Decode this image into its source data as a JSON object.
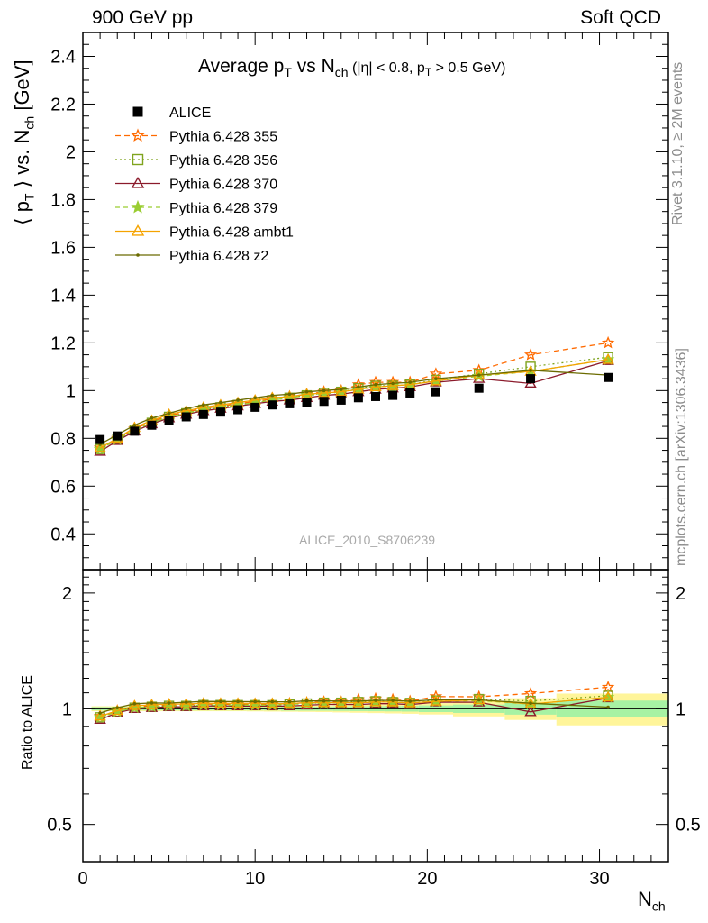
{
  "header": {
    "left": "900 GeV pp",
    "right": "Soft QCD"
  },
  "side_labels": {
    "rivet": "Rivet 3.1.10, ≥ 2M events",
    "mcplots": "mcplots.cern.ch [arXiv:1306.3436]"
  },
  "watermark": "ALICE_2010_S8706239",
  "chart_data": {
    "type": "scatter",
    "title": {
      "main": "Average p",
      "sub1": "T",
      "mid": " vs N",
      "sub2": "ch",
      "rest": " (|η| < 0.8, p",
      "sub3": "T",
      "end": " > 0.5 GeV)"
    },
    "xlabel": {
      "main": "N",
      "sub": "ch"
    },
    "ylabel": {
      "a": "⟨ p",
      "sub1": "T",
      "b": " ⟩ vs. N",
      "sub2": "ch",
      "c": " [GeV]"
    },
    "ratio_ylabel": "Ratio to ALICE",
    "xlim": [
      0,
      34
    ],
    "ylim": [
      0.25,
      2.5
    ],
    "ratio_ylim": [
      0.4,
      2.3
    ],
    "ratio_log": true,
    "x_ticks": [
      "0",
      "10",
      "20",
      "30"
    ],
    "y_ticks": [
      "0.4",
      "0.6",
      "0.8",
      "1",
      "1.2",
      "1.4",
      "1.6",
      "1.8",
      "2",
      "2.2",
      "2.4"
    ],
    "ratio_ticks": [
      "0.5",
      "1",
      "2"
    ],
    "legend_position": "top-left",
    "data": {
      "name": "ALICE",
      "color": "#000000",
      "x": [
        1,
        2,
        3,
        4,
        5,
        6,
        7,
        8,
        9,
        10,
        11,
        12,
        13,
        14,
        15,
        16,
        17,
        18,
        19,
        20.5,
        23,
        26,
        30.5
      ],
      "y": [
        0.795,
        0.81,
        0.83,
        0.855,
        0.875,
        0.89,
        0.9,
        0.91,
        0.92,
        0.93,
        0.94,
        0.945,
        0.95,
        0.955,
        0.96,
        0.97,
        0.975,
        0.98,
        0.99,
        0.995,
        1.01,
        1.05,
        1.055
      ],
      "ratio_band_edges": [
        0.5,
        1.5,
        2.5,
        3.5,
        4.5,
        5.5,
        6.5,
        7.5,
        8.5,
        9.5,
        10.5,
        11.5,
        12.5,
        13.5,
        14.5,
        15.5,
        16.5,
        17.5,
        18.5,
        19.5,
        21.5,
        24.5,
        27.5,
        34
      ],
      "ratio_band_stat": [
        0.01,
        0.01,
        0.01,
        0.01,
        0.01,
        0.01,
        0.01,
        0.01,
        0.01,
        0.01,
        0.01,
        0.012,
        0.012,
        0.012,
        0.013,
        0.014,
        0.015,
        0.016,
        0.017,
        0.02,
        0.025,
        0.035,
        0.05
      ],
      "ratio_band_tot": [
        0.015,
        0.015,
        0.015,
        0.015,
        0.015,
        0.015,
        0.015,
        0.015,
        0.015,
        0.016,
        0.017,
        0.018,
        0.019,
        0.02,
        0.022,
        0.024,
        0.026,
        0.028,
        0.03,
        0.034,
        0.045,
        0.065,
        0.095
      ]
    },
    "series": [
      {
        "name": "Pythia 6.428 355",
        "color": "#ff6a00",
        "dash": "6,4",
        "marker": "star-open",
        "x": [
          1,
          2,
          3,
          4,
          5,
          6,
          7,
          8,
          9,
          10,
          11,
          12,
          13,
          14,
          15,
          16,
          17,
          18,
          19,
          20.5,
          23,
          26,
          30.5
        ],
        "y": [
          0.76,
          0.8,
          0.84,
          0.87,
          0.895,
          0.91,
          0.925,
          0.935,
          0.945,
          0.955,
          0.965,
          0.975,
          0.985,
          0.995,
          1.0,
          1.025,
          1.035,
          1.035,
          1.035,
          1.07,
          1.085,
          1.15,
          1.2
        ]
      },
      {
        "name": "Pythia 6.428 356",
        "color": "#7fa41e",
        "dash": "2,3",
        "marker": "square-open",
        "x": [
          1,
          2,
          3,
          4,
          5,
          6,
          7,
          8,
          9,
          10,
          11,
          12,
          13,
          14,
          15,
          16,
          17,
          18,
          19,
          20.5,
          23,
          26,
          30.5
        ],
        "y": [
          0.755,
          0.795,
          0.835,
          0.865,
          0.89,
          0.905,
          0.92,
          0.93,
          0.94,
          0.95,
          0.96,
          0.97,
          0.98,
          0.99,
          0.995,
          1.01,
          1.02,
          1.02,
          1.025,
          1.045,
          1.07,
          1.1,
          1.14
        ]
      },
      {
        "name": "Pythia 6.428 370",
        "color": "#8b1a2b",
        "dash": "",
        "marker": "triangle-open",
        "x": [
          1,
          2,
          3,
          4,
          5,
          6,
          7,
          8,
          9,
          10,
          11,
          12,
          13,
          14,
          15,
          16,
          17,
          18,
          19,
          20.5,
          23,
          26,
          30.5
        ],
        "y": [
          0.745,
          0.79,
          0.83,
          0.86,
          0.885,
          0.9,
          0.915,
          0.925,
          0.935,
          0.945,
          0.955,
          0.96,
          0.97,
          0.98,
          0.985,
          0.995,
          1.005,
          1.01,
          1.015,
          1.035,
          1.05,
          1.03,
          1.125
        ]
      },
      {
        "name": "Pythia 6.428 379",
        "color": "#9acd32",
        "dash": "5,4",
        "marker": "star",
        "x": [
          1,
          2,
          3,
          4,
          5,
          6,
          7,
          8,
          9,
          10,
          11,
          12,
          13,
          14,
          15,
          16,
          17,
          18,
          19,
          20.5,
          23,
          26,
          30.5
        ],
        "y": [
          0.755,
          0.795,
          0.835,
          0.865,
          0.89,
          0.905,
          0.92,
          0.93,
          0.94,
          0.95,
          0.96,
          0.97,
          0.98,
          0.985,
          0.995,
          1.005,
          1.015,
          1.02,
          1.025,
          1.04,
          1.06,
          1.08,
          1.13
        ]
      },
      {
        "name": "Pythia 6.428 ambt1",
        "color": "#f5a300",
        "dash": "",
        "marker": "triangle-open",
        "x": [
          1,
          2,
          3,
          4,
          5,
          6,
          7,
          8,
          9,
          10,
          11,
          12,
          13,
          14,
          15,
          16,
          17,
          18,
          19,
          20.5,
          23,
          26,
          30.5
        ],
        "y": [
          0.76,
          0.8,
          0.845,
          0.875,
          0.9,
          0.915,
          0.93,
          0.94,
          0.95,
          0.96,
          0.97,
          0.975,
          0.985,
          0.99,
          0.995,
          1.005,
          1.015,
          1.02,
          1.025,
          1.04,
          1.065,
          1.08,
          1.13
        ]
      },
      {
        "name": "Pythia 6.428 z2",
        "color": "#6b6b00",
        "dash": "",
        "marker": "dot",
        "x": [
          1,
          2,
          3,
          4,
          5,
          6,
          7,
          8,
          9,
          10,
          11,
          12,
          13,
          14,
          15,
          16,
          17,
          18,
          19,
          20.5,
          23,
          26,
          30.5
        ],
        "y": [
          0.775,
          0.815,
          0.855,
          0.885,
          0.905,
          0.925,
          0.94,
          0.95,
          0.96,
          0.97,
          0.98,
          0.985,
          0.995,
          1.0,
          1.005,
          1.015,
          1.025,
          1.03,
          1.035,
          1.05,
          1.065,
          1.085,
          1.065
        ]
      }
    ]
  }
}
